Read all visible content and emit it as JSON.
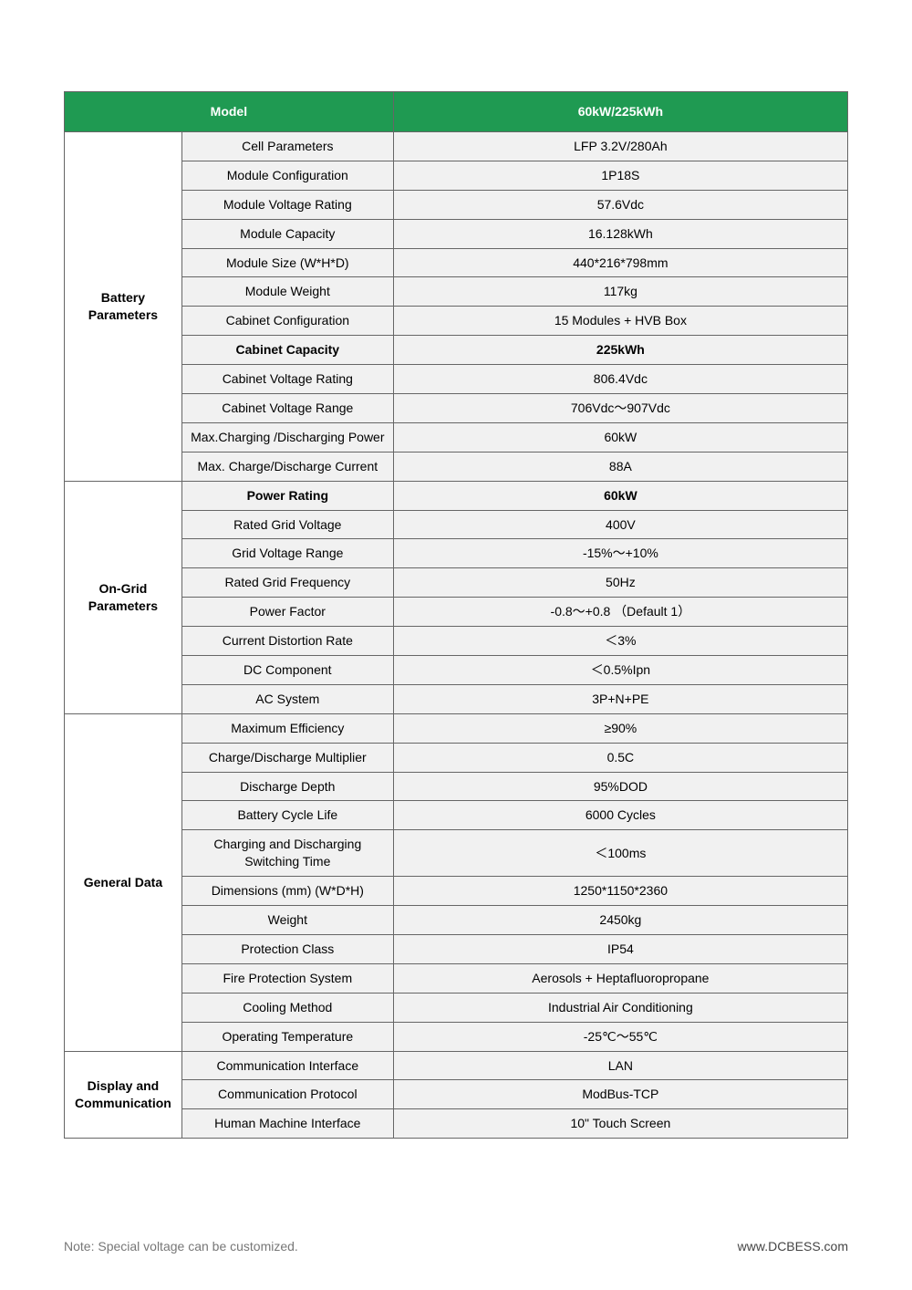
{
  "header": {
    "model_label": "Model",
    "model_value": "60kW/225kWh"
  },
  "col_widths_pct": [
    15,
    27,
    58
  ],
  "colors": {
    "header_bg": "#1f9a52",
    "header_text": "#ffffff",
    "border": "#666666",
    "zebra_bg": "#f1f1f1",
    "cat_bg": "#ffffff",
    "page_bg": "#ffffff",
    "footer_text": "#777777"
  },
  "sections": [
    {
      "category": "Battery Parameters",
      "rows": [
        {
          "param": "Cell Parameters",
          "value": "LFP 3.2V/280Ah",
          "bold": false
        },
        {
          "param": "Module Configuration",
          "value": "1P18S",
          "bold": false
        },
        {
          "param": "Module Voltage Rating",
          "value": "57.6Vdc",
          "bold": false
        },
        {
          "param": "Module Capacity",
          "value": "16.128kWh",
          "bold": false
        },
        {
          "param": "Module Size (W*H*D)",
          "value": "440*216*798mm",
          "bold": false
        },
        {
          "param": "Module Weight",
          "value": "117kg",
          "bold": false
        },
        {
          "param": "Cabinet Configuration",
          "value": "15 Modules + HVB Box",
          "bold": false
        },
        {
          "param": "Cabinet Capacity",
          "value": "225kWh",
          "bold": true
        },
        {
          "param": "Cabinet Voltage Rating",
          "value": "806.4Vdc",
          "bold": false
        },
        {
          "param": "Cabinet Voltage Range",
          "value": "706Vdc～907Vdc",
          "bold": false
        },
        {
          "param": "Max.Charging /Discharging Power",
          "value": "60kW",
          "bold": false
        },
        {
          "param": "Max. Charge/Discharge Current",
          "value": "88A",
          "bold": false
        }
      ]
    },
    {
      "category": "On-Grid Parameters",
      "rows": [
        {
          "param": "Power Rating",
          "value": "60kW",
          "bold": true
        },
        {
          "param": "Rated Grid Voltage",
          "value": "400V",
          "bold": false
        },
        {
          "param": "Grid Voltage Range",
          "value": "-15%～+10%",
          "bold": false
        },
        {
          "param": "Rated Grid Frequency",
          "value": "50Hz",
          "bold": false
        },
        {
          "param": "Power Factor",
          "value": "-0.8～+0.8  （Default 1）",
          "bold": false
        },
        {
          "param": "Current Distortion Rate",
          "value": "＜3%",
          "bold": false
        },
        {
          "param": "DC Component",
          "value": "＜0.5%Ipn",
          "bold": false
        },
        {
          "param": "AC System",
          "value": "3P+N+PE",
          "bold": false
        }
      ]
    },
    {
      "category": "General Data",
      "rows": [
        {
          "param": "Maximum Efficiency",
          "value": "≥90%",
          "bold": false
        },
        {
          "param": "Charge/Discharge Multiplier",
          "value": "0.5C",
          "bold": false
        },
        {
          "param": "Discharge Depth",
          "value": "95%DOD",
          "bold": false
        },
        {
          "param": "Battery Cycle Life",
          "value": "6000 Cycles",
          "bold": false
        },
        {
          "param": "Charging and Discharging Switching Time",
          "value": "＜100ms",
          "bold": false
        },
        {
          "param": "Dimensions (mm) (W*D*H)",
          "value": "1250*1150*2360",
          "bold": false
        },
        {
          "param": "Weight",
          "value": "2450kg",
          "bold": false
        },
        {
          "param": "Protection Class",
          "value": "IP54",
          "bold": false
        },
        {
          "param": "Fire Protection System",
          "value": "Aerosols + Heptafluoropropane",
          "bold": false
        },
        {
          "param": "Cooling Method",
          "value": "Industrial Air Conditioning",
          "bold": false
        },
        {
          "param": "Operating Temperature",
          "value": "-25℃～55℃",
          "bold": false
        }
      ]
    },
    {
      "category": "Display and Communication",
      "rows": [
        {
          "param": "Communication Interface",
          "value": "LAN",
          "bold": false
        },
        {
          "param": "Communication Protocol",
          "value": "ModBus-TCP",
          "bold": false
        },
        {
          "param": "Human Machine Interface",
          "value": "10\" Touch Screen",
          "bold": false
        }
      ]
    }
  ],
  "footer": {
    "note": "Note: Special voltage can be customized.",
    "url": "www.DCBESS.com"
  }
}
